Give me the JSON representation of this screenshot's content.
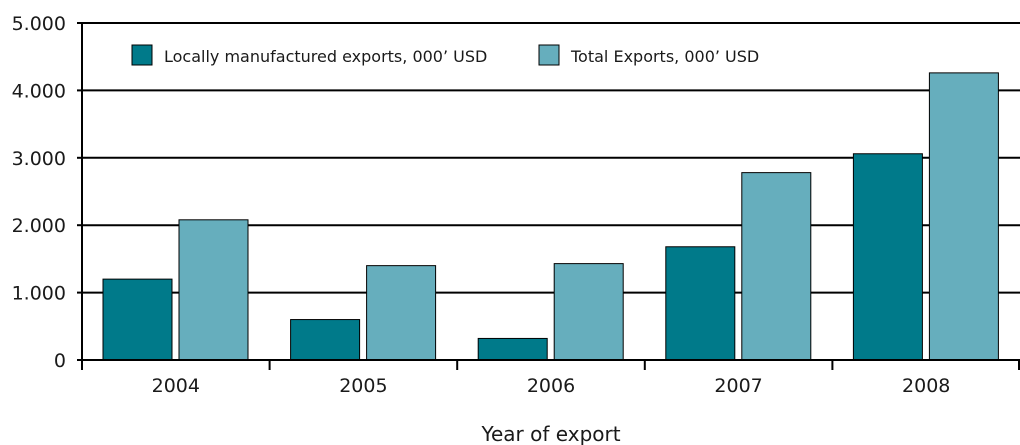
{
  "chart_data": {
    "type": "bar",
    "categories": [
      "2004",
      "2005",
      "2006",
      "2007",
      "2008"
    ],
    "series": [
      {
        "name": "Locally manufactured exports, 000’ USD",
        "color": "#007A8A",
        "values": [
          1200,
          600,
          320,
          1680,
          3060
        ]
      },
      {
        "name": "Total Exports, 000’ USD",
        "color": "#66AEBD",
        "values": [
          2080,
          1400,
          1430,
          2780,
          4260
        ]
      }
    ],
    "title": "",
    "xlabel": "Year of export",
    "ylabel": "",
    "ylim": [
      0,
      5000
    ],
    "yticks": [
      0,
      1000,
      2000,
      3000,
      4000,
      5000
    ],
    "ytick_labels": [
      "0",
      "1.000",
      "2.000",
      "3.000",
      "4.000",
      "5.000"
    ],
    "grid": true,
    "legend_position": "top-left"
  }
}
